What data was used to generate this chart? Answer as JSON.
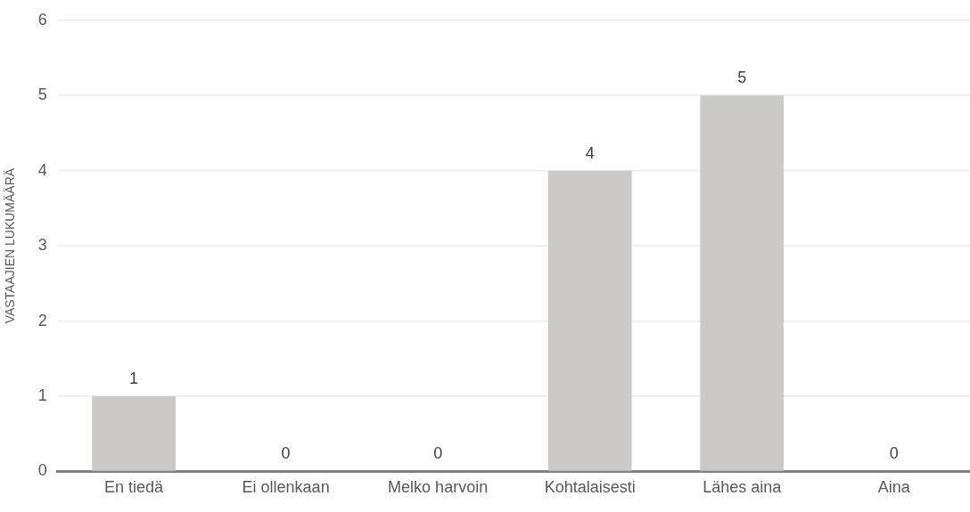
{
  "chart_data": {
    "type": "bar",
    "ylabel": "VASTAAJIEN LUKUMÄÄRÄ",
    "categories": [
      "En tiedä",
      "Ei ollenkaan",
      "Melko harvoin",
      "Kohtalaisesti",
      "Lähes aina",
      "Aina"
    ],
    "values": [
      1,
      0,
      0,
      4,
      5,
      0
    ],
    "color": "#cccac8",
    "ylim": [
      0,
      6
    ],
    "yticks": [
      0,
      1,
      2,
      3,
      4,
      5,
      6
    ],
    "grid": "y",
    "data_labels": true,
    "legend": false
  }
}
